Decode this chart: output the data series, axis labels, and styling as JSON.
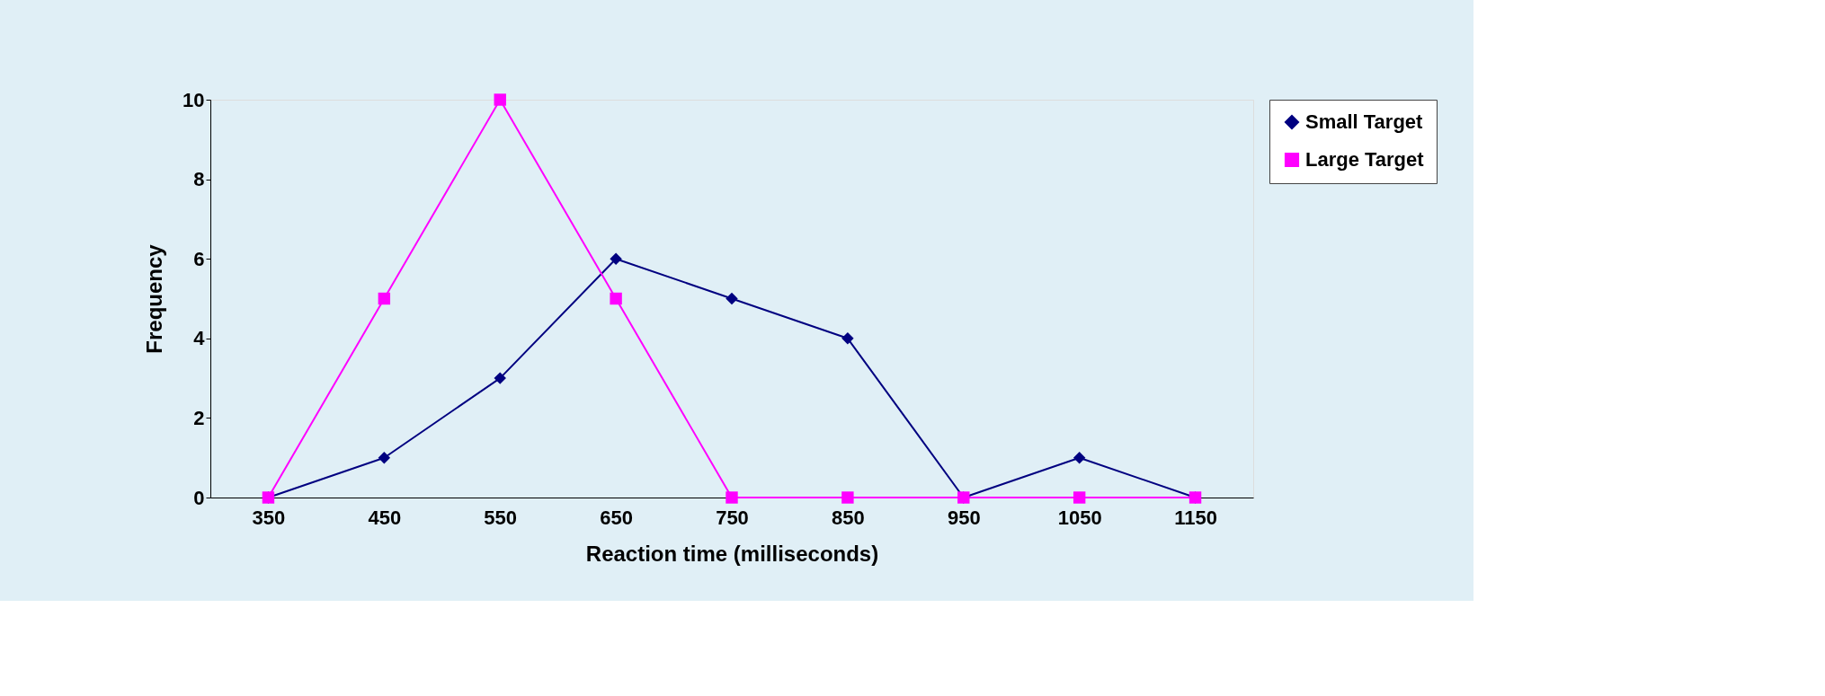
{
  "chart_data": {
    "type": "line",
    "xlabel": "Reaction time (milliseconds)",
    "ylabel": "Frequency",
    "categories": [
      "350",
      "450",
      "550",
      "650",
      "750",
      "850",
      "950",
      "1050",
      "1150"
    ],
    "series": [
      {
        "name": "Small Target",
        "color": "#000080",
        "marker": "diamond",
        "values": [
          0,
          1,
          3,
          6,
          5,
          4,
          0,
          1,
          0
        ]
      },
      {
        "name": "Large Target",
        "color": "#ff00ff",
        "marker": "square",
        "values": [
          0,
          5,
          10,
          5,
          0,
          0,
          0,
          0,
          0
        ]
      }
    ],
    "ylim": [
      0,
      10
    ],
    "yticks": [
      0,
      2,
      4,
      6,
      8,
      10
    ],
    "grid": false,
    "legend": "right",
    "line_style": "solid"
  }
}
